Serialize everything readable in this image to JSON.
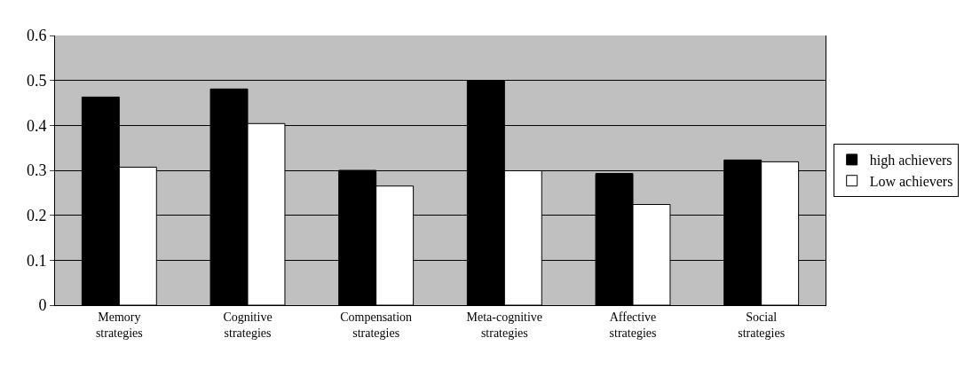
{
  "chart_data": {
    "type": "bar",
    "categories": [
      "Memory\nstrategies",
      "Cognitive\nstrategies",
      "Compensation\nstrategies",
      "Meta-cognitive\nstrategies",
      "Affective\nstrategies",
      "Social\nstrategies"
    ],
    "series": [
      {
        "name": "high achievers",
        "color": "#000000",
        "values": [
          0.463,
          0.481,
          0.3,
          0.5,
          0.293,
          0.323
        ]
      },
      {
        "name": "Low achievers",
        "color": "#ffffff",
        "values": [
          0.307,
          0.404,
          0.265,
          0.299,
          0.224,
          0.319
        ]
      }
    ],
    "ylim": [
      0,
      0.6
    ],
    "yticks": [
      0,
      0.1,
      0.2,
      0.3,
      0.4,
      0.5,
      0.6
    ],
    "grid": "y",
    "legend": "right"
  }
}
